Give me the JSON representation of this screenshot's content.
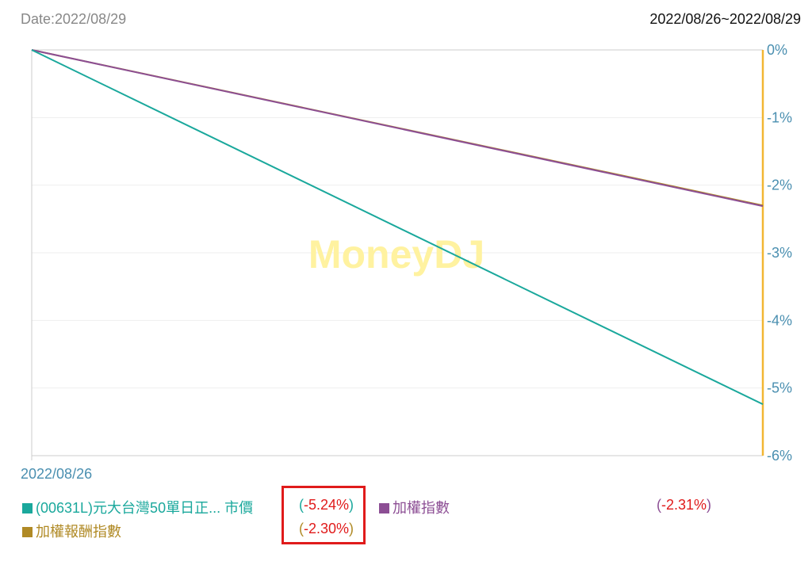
{
  "header": {
    "date_label": "Date:2022/08/29",
    "range_label": "2022/08/26~2022/08/29"
  },
  "watermark": "MoneyDJ",
  "chart_data": {
    "type": "line",
    "x": [
      "2022/08/26",
      "2022/08/29"
    ],
    "x_tick_labels": [
      "2022/08/26"
    ],
    "y_ticks": [
      "0%",
      "-1%",
      "-2%",
      "-3%",
      "-4%",
      "-5%",
      "-6%"
    ],
    "ylim": [
      -6,
      0
    ],
    "y_axis_position": "right",
    "grid": true,
    "series": [
      {
        "name": "(00631L)元大台灣50單日正... 市價",
        "values": [
          0,
          -5.24
        ],
        "color": "#1aa89c"
      },
      {
        "name": "加權指數",
        "values": [
          0,
          -2.31
        ],
        "color": "#8c4e94"
      },
      {
        "name": "加權報酬指數",
        "values": [
          0,
          -2.3
        ],
        "color": "#b08a25"
      }
    ]
  },
  "legend": {
    "items": [
      {
        "label": "(00631L)元大台灣50單日正... 市價",
        "value": "(-5.24%)",
        "color": "#1aa89c"
      },
      {
        "label": "加權指數",
        "value": "(-2.31%)",
        "color": "#8c4e94"
      },
      {
        "label": "加權報酬指數",
        "value": "(-2.30%)",
        "color": "#b08a25"
      }
    ],
    "value_paren_color": "#1aa89c",
    "value_number_color": "#e01b1b"
  },
  "colors": {
    "axis_right": "#f2b632",
    "tick_text": "#4a8fb0",
    "grid": "#eeeeee",
    "watermark": "#fff2a0",
    "highlight": "#e01b1b"
  }
}
